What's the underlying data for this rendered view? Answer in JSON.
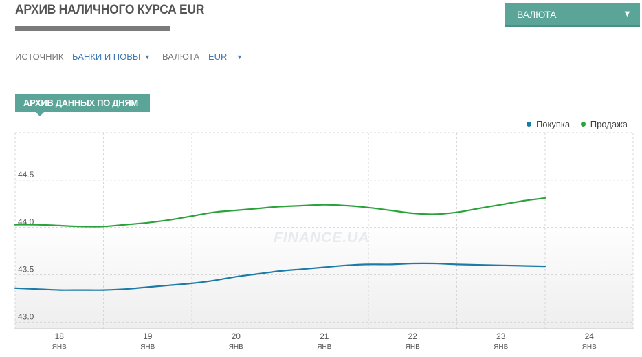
{
  "header": {
    "title": "АРХИВ НАЛИЧНОГО КУРСА EUR",
    "currency_button": "ВАЛЮТА"
  },
  "filters": {
    "source_label": "ИСТОЧНИК",
    "source_value": "БАНКИ И ПОВЫ",
    "currency_label": "ВАЛЮТА",
    "currency_value": "EUR"
  },
  "section": {
    "tab_label": "АРХИВ ДАННЫХ ПО ДНЯМ"
  },
  "watermark": "FINANCE.UA",
  "colors": {
    "accent": "#5aa597",
    "buy": "#1a7aa8",
    "sell": "#2ca23c"
  },
  "chart_data": {
    "type": "line",
    "title": "",
    "xlabel": "",
    "ylabel": "",
    "x_ticks": [
      {
        "day": "18",
        "month": "ЯНВ"
      },
      {
        "day": "19",
        "month": "ЯНВ"
      },
      {
        "day": "20",
        "month": "ЯНВ"
      },
      {
        "day": "21",
        "month": "ЯНВ"
      },
      {
        "day": "22",
        "month": "ЯНВ"
      },
      {
        "day": "23",
        "month": "ЯНВ"
      },
      {
        "day": "24",
        "month": "ЯНВ"
      }
    ],
    "y_ticks": [
      "43.0",
      "43.5",
      "44.0",
      "44.5"
    ],
    "ylim": [
      42.93,
      45.0
    ],
    "xlim": [
      0,
      6.85
    ],
    "grid": true,
    "legend_position": "top-right",
    "series": [
      {
        "name": "Покупка",
        "color": "#1a7aa8",
        "x": [
          0,
          0.25,
          0.5,
          0.75,
          1,
          1.25,
          1.5,
          1.75,
          2,
          2.25,
          2.5,
          2.75,
          3,
          3.25,
          3.5,
          3.75,
          4,
          4.25,
          4.5,
          4.75,
          5,
          5.5,
          6
        ],
        "values": [
          43.36,
          43.35,
          43.34,
          43.34,
          43.34,
          43.35,
          43.37,
          43.39,
          43.41,
          43.44,
          43.48,
          43.51,
          43.54,
          43.56,
          43.58,
          43.6,
          43.61,
          43.61,
          43.62,
          43.62,
          43.61,
          43.6,
          43.59
        ]
      },
      {
        "name": "Продажа",
        "color": "#2ca23c",
        "x": [
          0,
          0.25,
          0.5,
          0.75,
          1,
          1.25,
          1.5,
          1.75,
          2,
          2.25,
          2.5,
          2.75,
          3,
          3.25,
          3.5,
          3.75,
          4,
          4.25,
          4.5,
          4.75,
          5,
          5.25,
          5.5,
          5.75,
          6
        ],
        "values": [
          44.03,
          44.03,
          44.02,
          44.01,
          44.01,
          44.03,
          44.05,
          44.08,
          44.12,
          44.16,
          44.18,
          44.2,
          44.22,
          44.23,
          44.24,
          44.23,
          44.21,
          44.18,
          44.15,
          44.14,
          44.16,
          44.2,
          44.24,
          44.28,
          44.31
        ]
      }
    ]
  }
}
